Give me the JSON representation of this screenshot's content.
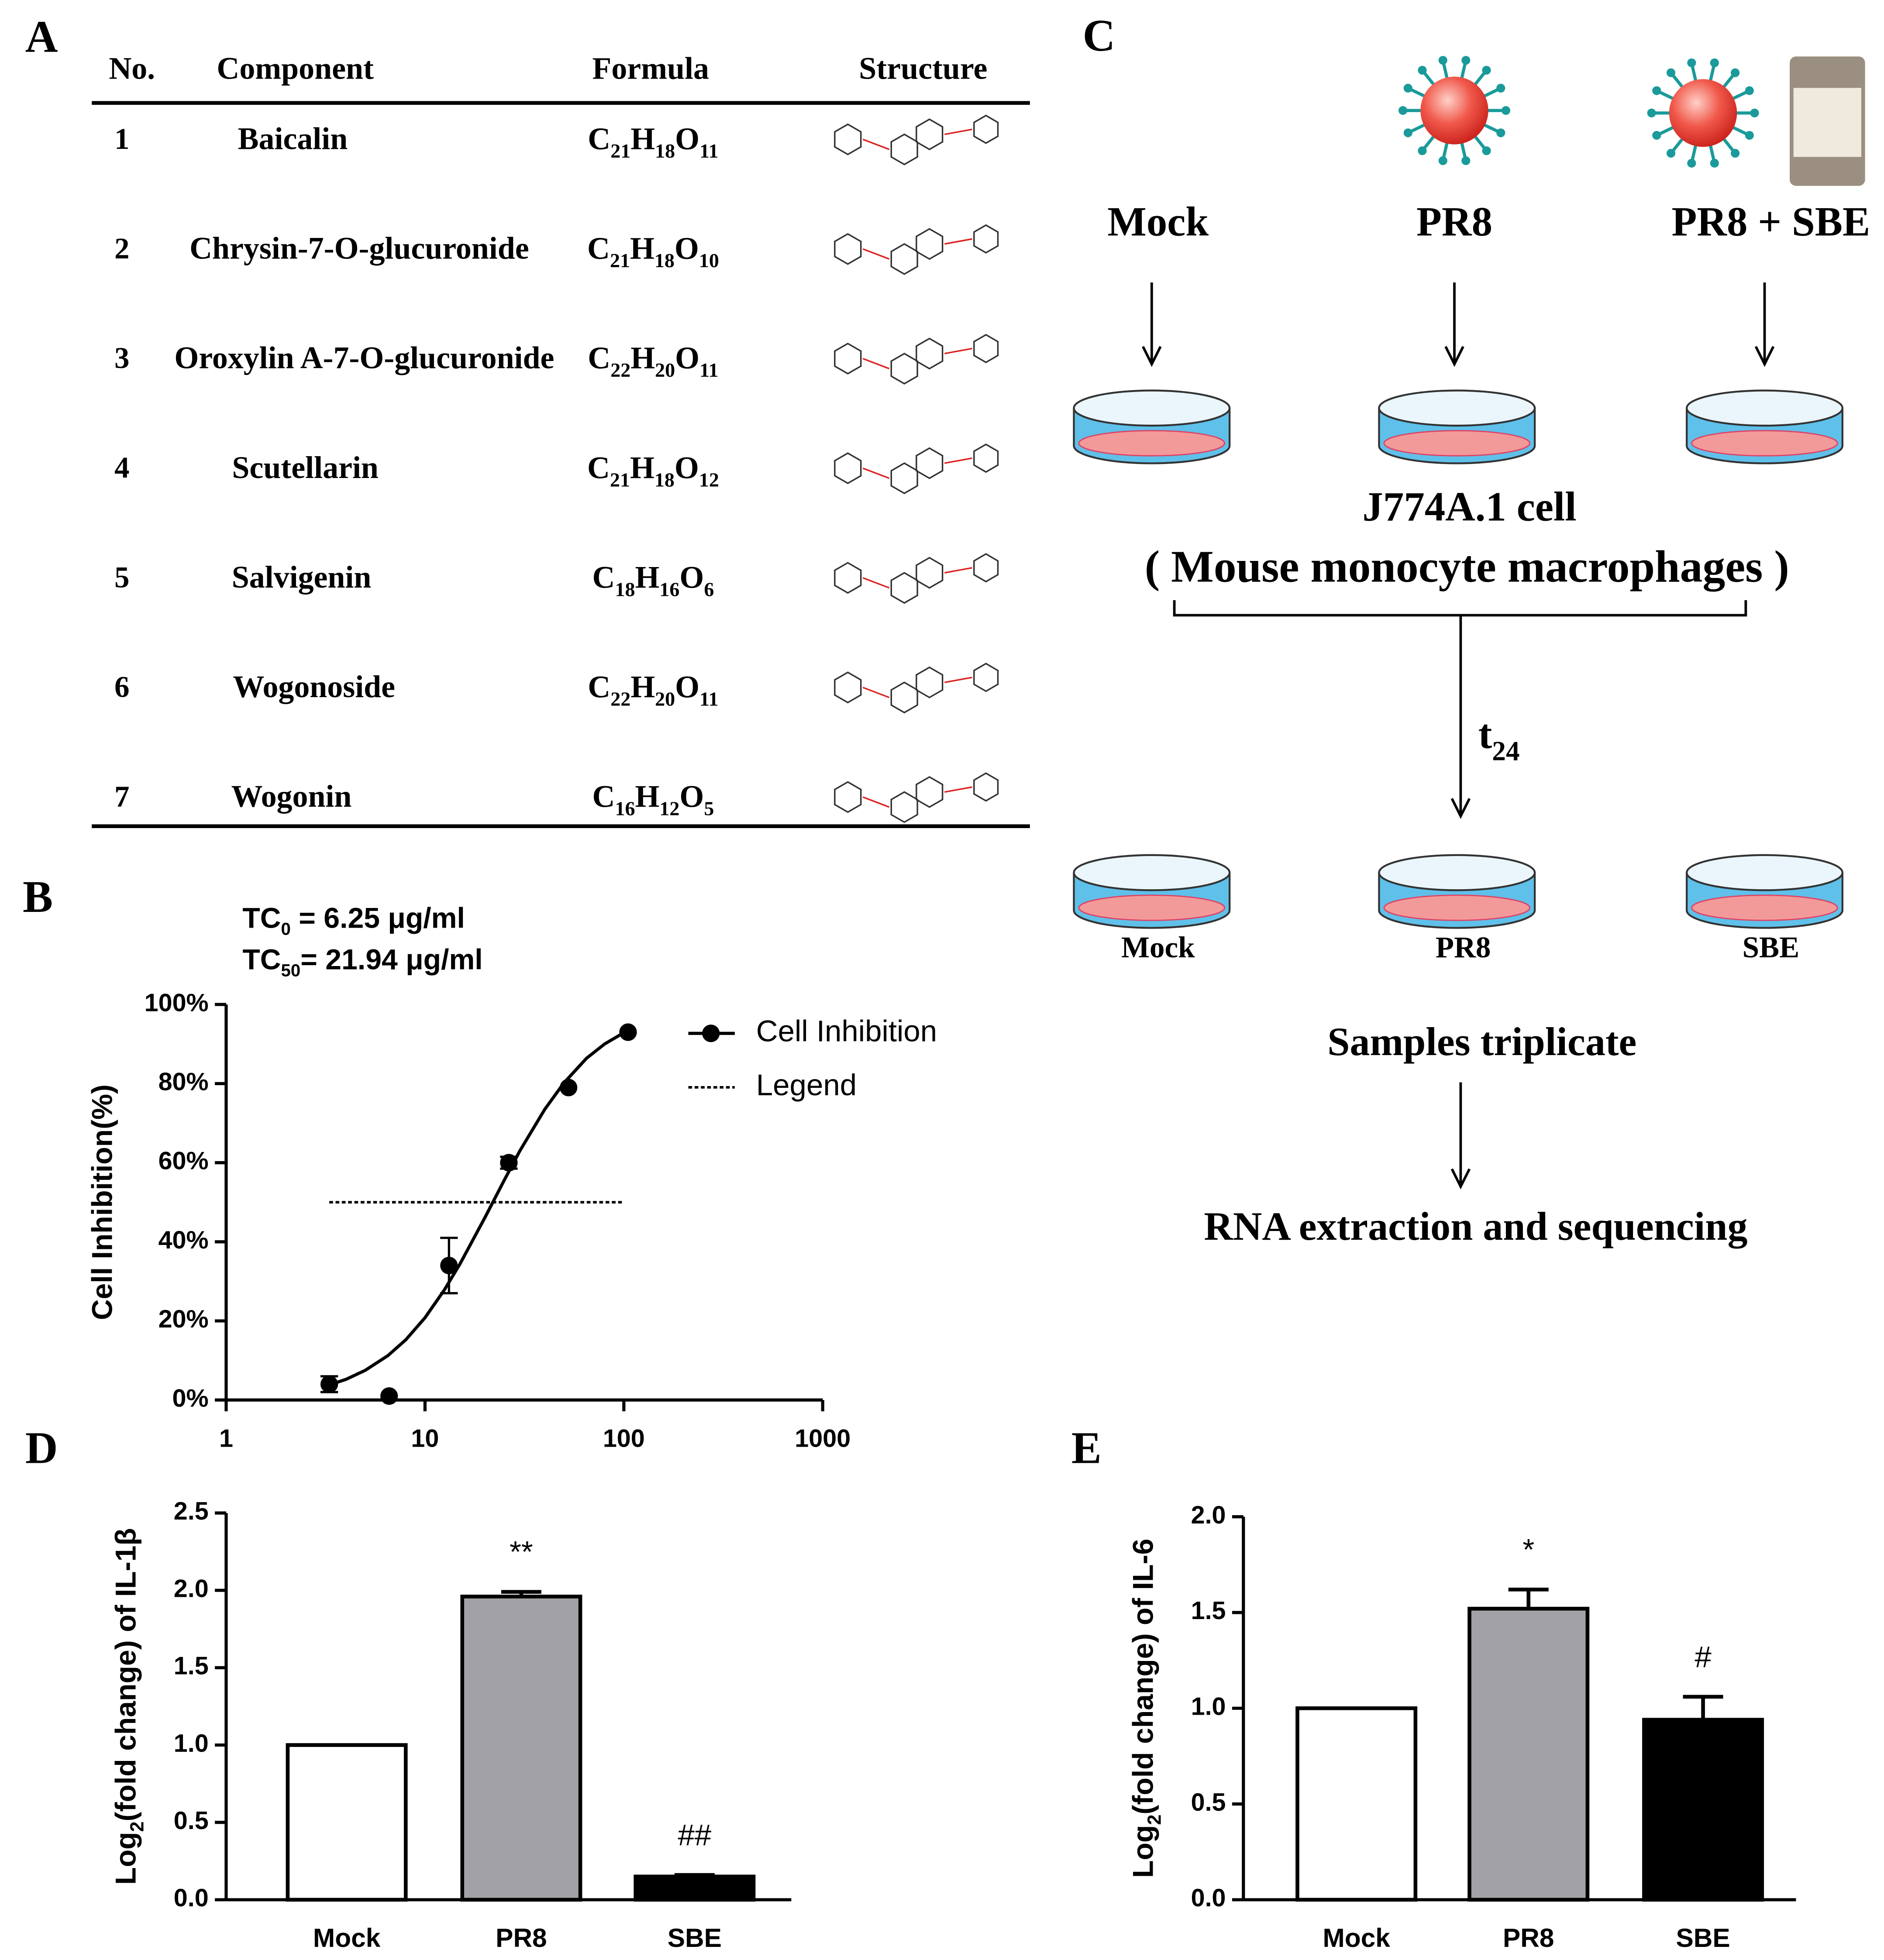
{
  "panel_labels": [
    "A",
    "B",
    "C",
    "D",
    "E"
  ],
  "table": {
    "headers": [
      "No.",
      "Component",
      "Formula",
      "Structure"
    ],
    "rows": [
      {
        "no": "1",
        "component": "Baicalin",
        "formula": [
          "C",
          "21",
          "H",
          "18",
          "O",
          "11"
        ]
      },
      {
        "no": "2",
        "component": "Chrysin-7-O-glucuronide",
        "formula": [
          "C",
          "21",
          "H",
          "18",
          "O",
          "10"
        ]
      },
      {
        "no": "3",
        "component": "Oroxylin A-7-O-glucuronide",
        "formula": [
          "C",
          "22",
          "H",
          "20",
          "O",
          "11"
        ]
      },
      {
        "no": "4",
        "component": "Scutellarin",
        "formula": [
          "C",
          "21",
          "H",
          "18",
          "O",
          "12"
        ]
      },
      {
        "no": "5",
        "component": "Salvigenin",
        "formula": [
          "C",
          "18",
          "H",
          "16",
          "O",
          "6"
        ]
      },
      {
        "no": "6",
        "component": "Wogonoside",
        "formula": [
          "C",
          "22",
          "H",
          "20",
          "O",
          "11"
        ]
      },
      {
        "no": "7",
        "component": "Wogonin",
        "formula": [
          "C",
          "16",
          "H",
          "12",
          "O",
          "5"
        ]
      }
    ]
  },
  "diagram": {
    "groups": [
      "Mock",
      "PR8",
      "PR8 + SBE"
    ],
    "cell_line": "J774A.1 cell",
    "cell_type": "( Mouse monocyte macrophages )",
    "time": {
      "text": "t",
      "sub": "24"
    },
    "samples": [
      "Mock",
      "PR8",
      "SBE"
    ],
    "step1": "Samples triplicate",
    "step2": "RNA extraction and sequencing"
  },
  "chart_data": [
    {
      "type": "scatter",
      "annotations": [
        {
          "text": "TC",
          "sub": "0",
          "rest": " = 6.25 μg/ml"
        },
        {
          "text": "TC",
          "sub": "50",
          "rest": "= 21.94 μg/ml"
        }
      ],
      "ylabel": "Cell Inhibition(%)",
      "xlog": true,
      "xlim": [
        1,
        1000
      ],
      "xticks": [
        1,
        10,
        100,
        1000
      ],
      "ylim": [
        0,
        100
      ],
      "yticks": [
        {
          "value": 0,
          "label": "0%"
        },
        {
          "value": 20,
          "label": "20%"
        },
        {
          "value": 40,
          "label": "40%"
        },
        {
          "value": 60,
          "label": "60%"
        },
        {
          "value": 80,
          "label": "80%"
        },
        {
          "value": 100,
          "label": "100%"
        }
      ],
      "legend": "upper right",
      "series": [
        {
          "name": "Cell Inhibition",
          "color": "#000000",
          "x": [
            3.3,
            6.6,
            13.2,
            26.4,
            52.7,
            105
          ],
          "values": [
            4,
            1,
            34,
            60,
            79,
            93
          ],
          "errors": [
            2,
            0,
            7,
            1.5,
            0,
            0
          ],
          "fit_x": [
            3.3,
            4,
            5,
            6.5,
            8,
            10,
            12.5,
            15,
            20,
            25,
            30,
            40,
            50,
            65,
            80,
            105
          ],
          "fit_values": [
            3.8,
            5.2,
            7.5,
            11.2,
            15.2,
            20.8,
            27.8,
            34.4,
            46.1,
            55.5,
            63.0,
            73.5,
            80.2,
            86.4,
            90.0,
            93.5
          ]
        },
        {
          "name": "Legend",
          "color": "#000000",
          "style": "dotted",
          "x": [
            3.3,
            100
          ],
          "values": [
            50,
            50
          ]
        }
      ]
    },
    {
      "type": "bar",
      "ylabel": {
        "text": "Log",
        "sub": "2",
        "rest": "(fold change) of IL-1β"
      },
      "categories": [
        "Mock",
        "PR8",
        "SBE"
      ],
      "values": [
        1,
        1.96,
        0.15
      ],
      "errors": [
        0,
        0.03,
        0.01
      ],
      "colors": [
        "#ffffff",
        "#a2a2a6",
        "#000000"
      ],
      "value_annotations": [
        null,
        "**",
        "##"
      ],
      "ylim": [
        0,
        2.5
      ],
      "yticks": [
        {
          "value": 0,
          "label": "0.0"
        },
        0.5,
        {
          "value": 1,
          "label": "1.0"
        },
        1.5,
        {
          "value": 2,
          "label": "2.0"
        },
        2.5
      ]
    },
    {
      "type": "bar",
      "ylabel": {
        "text": "Log",
        "sub": "2",
        "rest": "(fold change) of IL-6"
      },
      "categories": [
        "Mock",
        "PR8",
        "SBE"
      ],
      "values": [
        1,
        1.52,
        0.94
      ],
      "errors": [
        0,
        0.1,
        0.12
      ],
      "colors": [
        "#ffffff",
        "#a2a2a6",
        "#000000"
      ],
      "value_annotations": [
        null,
        "*",
        "#"
      ],
      "ylim": [
        0,
        2
      ],
      "yticks": [
        {
          "value": 0,
          "label": "0.0"
        },
        0.5,
        {
          "value": 1,
          "label": "1.0"
        },
        1.5,
        {
          "value": 2,
          "label": "2.0"
        }
      ]
    }
  ]
}
